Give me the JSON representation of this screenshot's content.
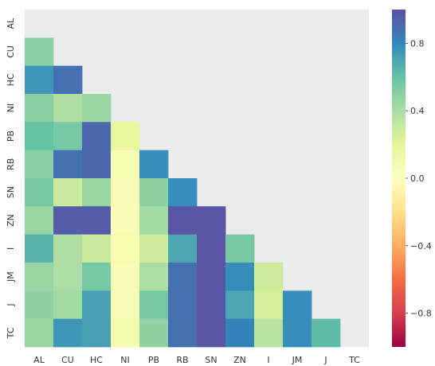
{
  "chart_data": {
    "type": "heatmap",
    "labels": [
      "AL",
      "CU",
      "HC",
      "NI",
      "PB",
      "RB",
      "SN",
      "ZN",
      "I",
      "JM",
      "J",
      "TC"
    ],
    "mask": "upper-triangle-including-diagonal",
    "matrix": [
      [
        null,
        null,
        null,
        null,
        null,
        null,
        null,
        null,
        null,
        null,
        null,
        null
      ],
      [
        0.5,
        null,
        null,
        null,
        null,
        null,
        null,
        null,
        null,
        null,
        null,
        null
      ],
      [
        0.75,
        0.88,
        null,
        null,
        null,
        null,
        null,
        null,
        null,
        null,
        null,
        null
      ],
      [
        0.5,
        0.38,
        0.45,
        null,
        null,
        null,
        null,
        null,
        null,
        null,
        null,
        null
      ],
      [
        0.6,
        0.55,
        0.92,
        0.18,
        null,
        null,
        null,
        null,
        null,
        null,
        null,
        null
      ],
      [
        0.5,
        0.88,
        0.92,
        0.07,
        0.78,
        null,
        null,
        null,
        null,
        null,
        null,
        null
      ],
      [
        0.55,
        0.3,
        0.45,
        0.04,
        0.48,
        0.78,
        null,
        null,
        null,
        null,
        null,
        null
      ],
      [
        0.45,
        0.95,
        0.95,
        0.05,
        0.42,
        0.98,
        0.98,
        null,
        null,
        null,
        null,
        null
      ],
      [
        0.65,
        0.38,
        0.3,
        0.06,
        0.28,
        0.7,
        0.98,
        0.55,
        null,
        null,
        null,
        null
      ],
      [
        0.45,
        0.4,
        0.55,
        0.05,
        0.4,
        0.88,
        0.98,
        0.78,
        0.28,
        null,
        null,
        null
      ],
      [
        0.48,
        0.42,
        0.72,
        0.05,
        0.55,
        0.88,
        0.98,
        0.7,
        0.25,
        0.78,
        null,
        null
      ],
      [
        0.45,
        0.75,
        0.72,
        0.08,
        0.48,
        0.88,
        0.98,
        0.82,
        0.35,
        0.78,
        0.62,
        null
      ]
    ],
    "colorbar": {
      "colormap": "Spectral",
      "vmin": -1.0,
      "vmax": 1.0,
      "ticks": [
        "0.8",
        "0.4",
        "0.0",
        "−0.4",
        "−0.8"
      ],
      "tick_values": [
        0.8,
        0.4,
        0.0,
        -0.4,
        -0.8
      ]
    },
    "background_color": "#ebebeb",
    "grid": false,
    "title": "",
    "xlabel": "",
    "ylabel": ""
  }
}
